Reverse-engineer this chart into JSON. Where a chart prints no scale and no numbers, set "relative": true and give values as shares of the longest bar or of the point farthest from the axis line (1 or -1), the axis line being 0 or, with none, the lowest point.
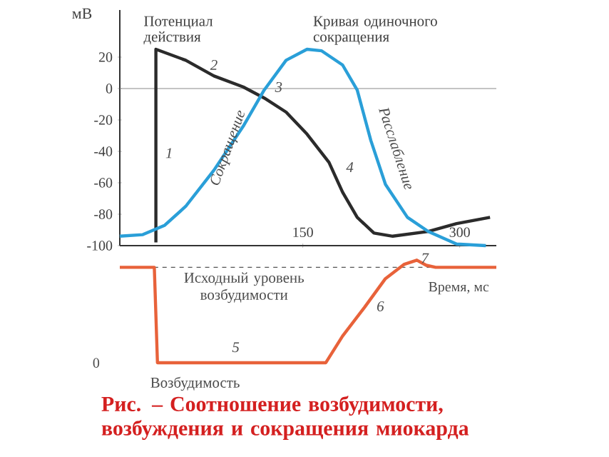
{
  "chart_data": [
    {
      "type": "line",
      "ylabel": "мВ",
      "xlim": [
        -25,
        335
      ],
      "xticks": [
        150,
        300
      ],
      "ylim": [
        -100,
        50
      ],
      "yticks": [
        -100,
        -80,
        -60,
        -40,
        -20,
        0,
        20
      ],
      "marker": "none",
      "line_style": "solid",
      "series": [
        {
          "name": "Потенциал действия",
          "color": "#2b2b2b",
          "x": [
            9.5,
            9.5,
            38,
            65,
            93,
            113,
            134,
            154,
            175,
            188,
            202,
            218,
            236,
            270,
            297,
            329
          ],
          "values": [
            -98,
            25,
            18,
            8,
            1,
            -6,
            -15,
            -29,
            -47,
            -66,
            -82,
            -92,
            -94,
            -91,
            -86,
            -82
          ]
        },
        {
          "name": "Кривая одиночного сокращения",
          "color": "#2a9fd8",
          "x": [
            -25,
            -3,
            18,
            38,
            65,
            93,
            113,
            134,
            154,
            168,
            188,
            202,
            215,
            229,
            250,
            270,
            297,
            325
          ],
          "values": [
            -94,
            -93,
            -87,
            -75,
            -52,
            -24,
            -1,
            18,
            25,
            24,
            15,
            -1,
            -33,
            -61,
            -82,
            -91,
            -99,
            -100
          ]
        }
      ],
      "ref_lines": [
        {
          "axis": "y",
          "value": 0,
          "color": "#8a8a8a"
        }
      ],
      "annotations": [
        "1",
        "2",
        "3",
        "4",
        "Сокращение",
        "Расслабление"
      ]
    },
    {
      "type": "line",
      "relative": true,
      "xlim": [
        -25,
        335
      ],
      "xlabel": "Время, мс",
      "marker": "none",
      "line_style": "solid",
      "series": [
        {
          "color": "#e8623a",
          "x": [
            -25,
            8,
            11,
            172,
            188,
            209,
            229,
            247,
            259,
            268,
            277,
            335
          ],
          "values": [
            0.93,
            0.93,
            0,
            0,
            0.26,
            0.54,
            0.82,
            0.96,
            1,
            0.95,
            0.93,
            0.93
          ]
        }
      ],
      "ref_lines": [
        {
          "axis": "y",
          "value": 0.93,
          "label": "Исходный уровень возбудимости",
          "line_style": "dashed",
          "color": "#555555"
        }
      ],
      "annotations": [
        "0",
        "5",
        "6",
        "7",
        "Возбудимость",
        "Рис. – Соотношение возбудимости, возбуждения и сокращения миокарда"
      ]
    }
  ]
}
